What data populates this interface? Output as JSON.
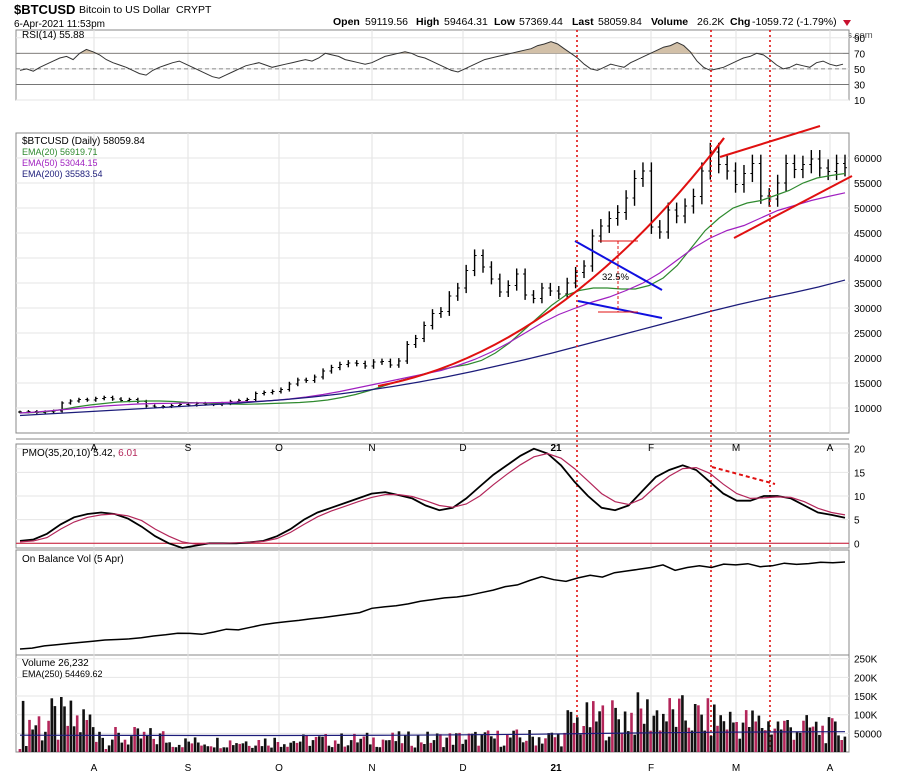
{
  "header": {
    "symbol": "$BTCUSD",
    "name": "Bitcoin to US Dollar",
    "exchange": "CRYPT",
    "date": "6-Apr-2021 11:53pm",
    "open_label": "Open",
    "open": "59119.56",
    "high_label": "High",
    "high": "59464.31",
    "low_label": "Low",
    "low": "57369.44",
    "last_label": "Last",
    "last": "58059.84",
    "volume_label": "Volume",
    "volume": "26.2K",
    "chg_label": "Chg",
    "chg": "-1059.72 (-1.79%)",
    "watermark": "@ StockCharts.com"
  },
  "chart_data": {
    "type": "line",
    "x_ticks": [
      "A",
      "S",
      "O",
      "N",
      "D",
      "21",
      "F",
      "M",
      "A"
    ],
    "panels": [
      {
        "name": "rsi",
        "label": "RSI(14) 55.88",
        "ylim": [
          10,
          100
        ],
        "ticks": [
          90,
          70,
          50,
          30,
          10
        ],
        "levels": [
          70,
          50,
          30
        ],
        "series": [
          {
            "name": "RSI(14)",
            "values": [
              48,
              50,
              47,
              52,
              56,
              60,
              64,
              66,
              62,
              70,
              75,
              72,
              68,
              62,
              58,
              55,
              52,
              48,
              44,
              42,
              48,
              52,
              55,
              58,
              60,
              56,
              52,
              48,
              44,
              40,
              38,
              42,
              46,
              50,
              54,
              56,
              58,
              55,
              52,
              54,
              56,
              58,
              60,
              62,
              60,
              64,
              70,
              68,
              66,
              62,
              60,
              58,
              56,
              58,
              62,
              66,
              68,
              70,
              72,
              70,
              66,
              64,
              60,
              56,
              52,
              48,
              46,
              50,
              54,
              58,
              62,
              64,
              66,
              68,
              70,
              72,
              74,
              76,
              80,
              82,
              85,
              82,
              76,
              70,
              64,
              56,
              50,
              48,
              52,
              56,
              54,
              52,
              58,
              62,
              66,
              70,
              74,
              78,
              80,
              84,
              80,
              72,
              60,
              52,
              48,
              50,
              52,
              56,
              60,
              64,
              66,
              70,
              68,
              62,
              55,
              50,
              52,
              56,
              54,
              52,
              58,
              60,
              56,
              54,
              56
            ]
          }
        ]
      },
      {
        "name": "price",
        "label": "$BTCUSD (Daily) 58059.84",
        "ylim": [
          5000,
          65000
        ],
        "ticks": [
          60000,
          55000,
          50000,
          45000,
          40000,
          35000,
          30000,
          25000,
          20000,
          15000,
          10000
        ],
        "series": [
          {
            "name": "$BTCUSD",
            "values": [
              9200,
              9300,
              9100,
              9250,
              9400,
              11000,
              11400,
              11700,
              11600,
              11900,
              12100,
              11800,
              11500,
              11700,
              11300,
              10400,
              10200,
              10300,
              10500,
              10700,
              10600,
              10900,
              10800,
              10700,
              10900,
              11300,
              11500,
              11700,
              12900,
              13100,
              13300,
              13700,
              14800,
              15600,
              15500,
              16200,
              17400,
              18100,
              18700,
              19000,
              18900,
              18400,
              19200,
              19300,
              18600,
              19400,
              22700,
              23900,
              26500,
              28900,
              29300,
              32400,
              34000,
              37500,
              40500,
              38200,
              35800,
              33200,
              34500,
              36800,
              32600,
              31900,
              34000,
              33400,
              32800,
              35000,
              37100,
              38400,
              44400,
              46400,
              47900,
              49100,
              52000,
              55900,
              57400,
              46200,
              45200,
              49600,
              48400,
              50400,
              52300,
              57400,
              61200,
              58700,
              57400,
              54700,
              56900,
              58900,
              52400,
              51800,
              55000,
              58900,
              57700,
              58700,
              59800,
              58000,
              57300,
              58900,
              58060
            ]
          },
          {
            "name": "EMA(20)",
            "values": [
              9000,
              9100,
              9300,
              9700,
              10200,
              10600,
              10900,
              11200,
              11300,
              11400,
              11400,
              11300,
              11100,
              11000,
              10900,
              10800,
              10750,
              10800,
              10900,
              11000,
              11100,
              11300,
              11600,
              12100,
              12700,
              13500,
              14400,
              15300,
              16100,
              16900,
              17600,
              18200,
              18700,
              19500,
              21000,
              23000,
              25500,
              28000,
              30500,
              32500,
              33500,
              34000,
              34000,
              33800,
              33800,
              34500,
              36000,
              38500,
              42000,
              45500,
              48000,
              50000,
              51000,
              51500,
              52500,
              53500,
              55000,
              56000,
              56500,
              56900
            ]
          },
          {
            "name": "EMA(50)",
            "values": [
              9000,
              9200,
              9500,
              9800,
              10100,
              10400,
              10600,
              10800,
              10900,
              10950,
              11000,
              11050,
              11100,
              11200,
              11300,
              11500,
              11800,
              12200,
              12700,
              13300,
              14000,
              14700,
              15400,
              16100,
              16800,
              17500,
              18500,
              19700,
              21200,
              23000,
              25000,
              27000,
              28700,
              30000,
              31200,
              32200,
              33500,
              35000,
              37000,
              39500,
              42000,
              44000,
              45500,
              46500,
              48000,
              49500,
              50500,
              51500,
              52300,
              53044
            ]
          },
          {
            "name": "EMA(200)",
            "values": [
              8500,
              8800,
              9100,
              9400,
              9700,
              10000,
              10300,
              10600,
              10900,
              11300,
              11700,
              12200,
              12800,
              13500,
              14300,
              15200,
              16200,
              17300,
              18500,
              19700,
              21000,
              22400,
              23800,
              25200,
              26600,
              28000,
              29400,
              30700,
              31900,
              33000,
              34200,
              35583
            ]
          }
        ]
      },
      {
        "name": "pmo",
        "label": "PMO(35,20,10) 5.42, 6.01",
        "ylim": [
          -1,
          21
        ],
        "ticks": [
          20,
          15,
          10,
          5,
          0
        ],
        "series": [
          {
            "name": "PMO",
            "values": [
              0.5,
              0.8,
              2,
              4,
              5.5,
              6.2,
              6.5,
              6.2,
              5.2,
              3.5,
              1.5,
              0,
              -1,
              -0.5,
              0,
              0,
              0,
              0.2,
              0.5,
              1.5,
              3,
              5,
              6.5,
              7.5,
              8.5,
              9.5,
              10.5,
              10.8,
              10.2,
              9.5,
              8,
              7,
              7.5,
              9.5,
              12,
              14.5,
              16.5,
              18.5,
              20,
              19,
              16.5,
              13,
              10,
              7.5,
              7,
              8,
              11,
              14,
              15.5,
              16.5,
              15.5,
              13,
              10.5,
              9,
              9,
              10,
              10,
              9.5,
              8,
              6.5,
              6,
              5.42
            ]
          },
          {
            "name": "Signal",
            "values": [
              0.3,
              0.5,
              1.2,
              3,
              4.5,
              5.5,
              6,
              6.2,
              5.8,
              4.8,
              3,
              1.5,
              0.3,
              -0.2,
              0,
              0,
              0.1,
              0.2,
              0.4,
              1,
              2.3,
              4,
              5.6,
              6.8,
              7.8,
              8.8,
              9.7,
              10.3,
              10.3,
              9.9,
              9,
              8,
              7.6,
              8.3,
              10,
              12.4,
              14.6,
              16.6,
              18.3,
              19,
              18,
              15.8,
              13.2,
              10.5,
              8.8,
              8.2,
              9.4,
              12,
              14.2,
              15.8,
              16,
              14.8,
              12.5,
              10.5,
              9.5,
              9.6,
              9.8,
              9.7,
              8.8,
              7.4,
              6.5,
              6.01
            ]
          }
        ]
      },
      {
        "name": "obv",
        "label": "On Balance Vol (5 Apr)",
        "series": [
          {
            "name": "On Balance Vol",
            "values": [
              1,
              1.5,
              2.8,
              3.5,
              4.2,
              4.8,
              5.5,
              6.2,
              6.5,
              6.8,
              7.5,
              8.5,
              9.2,
              10.1,
              10,
              9.5,
              10.8,
              12.4,
              12,
              13.5,
              15,
              16,
              16.8,
              17.5,
              18.5,
              19.2,
              20.1,
              21,
              22,
              24.5,
              25.3,
              26,
              27,
              28.5,
              29.5,
              30.5,
              31,
              32,
              33.5,
              35,
              37,
              38,
              40.5,
              42.8,
              41,
              40,
              42,
              43.5,
              42.5,
              45,
              46,
              47,
              48,
              49.5,
              46.4,
              48,
              49,
              48,
              50,
              49.5,
              50.2,
              48.5,
              49,
              50.5,
              49.8,
              50.3,
              51,
              50.8,
              51.2
            ]
          }
        ]
      },
      {
        "name": "volume",
        "label": "Volume 26,232",
        "ema_label": "EMA(250) 54469.62",
        "ylim": [
          0,
          260000
        ],
        "ticks": [
          250000,
          200000,
          150000,
          100000,
          50000
        ],
        "ema250": [
          45000,
          44800,
          44500,
          44300,
          44200,
          44500,
          45000,
          46000,
          47500,
          49500,
          51500,
          53000,
          54000,
          54469
        ]
      }
    ]
  },
  "colors": {
    "up": "#000000",
    "down": "#b3265a",
    "ema20": "#2f8a2f",
    "ema50": "#a020c0",
    "ema200": "#1c1c7a",
    "red": "#e01010",
    "blue": "#1010e0",
    "band": "#d2c0a8"
  },
  "annotation": {
    "pct": "32.5%"
  }
}
